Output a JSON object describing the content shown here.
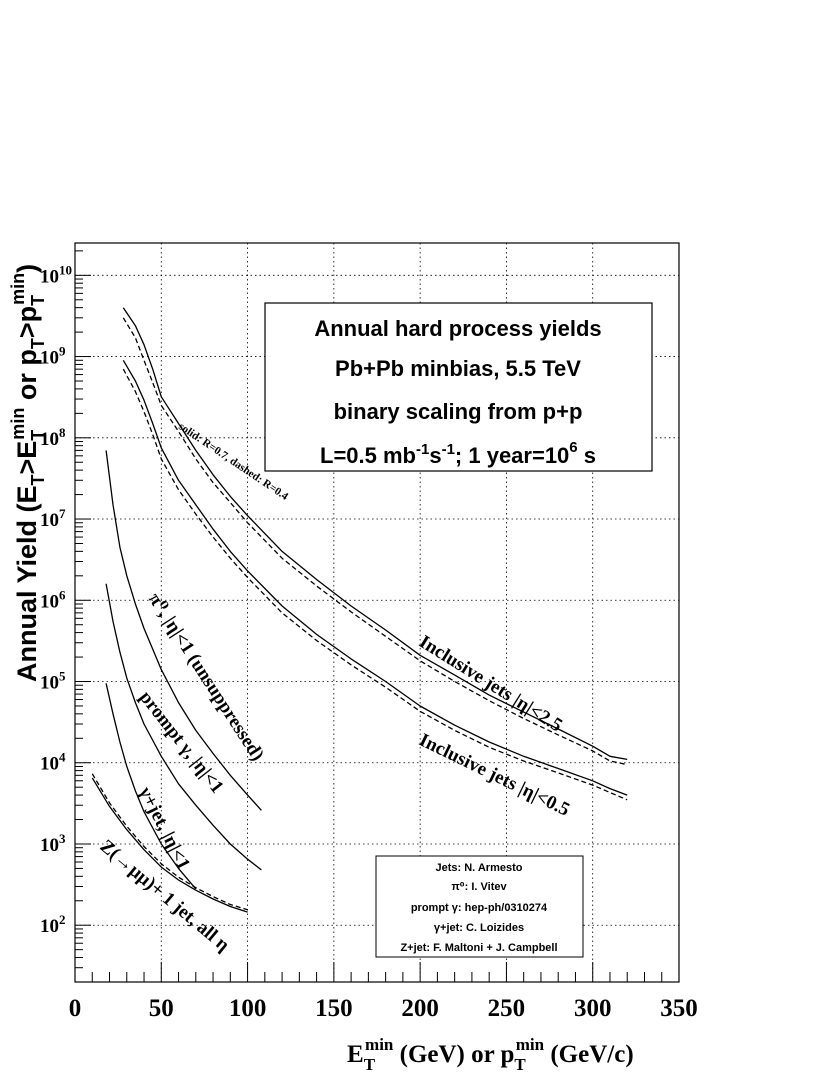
{
  "chart_data": {
    "type": "line",
    "xlim": [
      0,
      350
    ],
    "ylim": [
      20,
      25000000000.0
    ],
    "yscale": "log",
    "grid": true,
    "x_ticks": [
      0,
      50,
      100,
      150,
      200,
      250,
      300,
      350
    ],
    "y_ticks": [
      {
        "value": 100,
        "base": "10",
        "exp": "2"
      },
      {
        "value": 1000,
        "base": "10",
        "exp": "3"
      },
      {
        "value": 10000,
        "base": "10",
        "exp": "4"
      },
      {
        "value": 100000,
        "base": "10",
        "exp": "5"
      },
      {
        "value": 1000000,
        "base": "10",
        "exp": "6"
      },
      {
        "value": 10000000,
        "base": "10",
        "exp": "7"
      },
      {
        "value": 100000000,
        "base": "10",
        "exp": "8"
      },
      {
        "value": 1000000000,
        "base": "10",
        "exp": "9"
      },
      {
        "value": 10000000000,
        "base": "10",
        "exp": "10"
      }
    ],
    "xlabel": {
      "e": "E",
      "e_sub": "T",
      "e_sup": "min",
      "unit1": " (GeV)  or p",
      "p_sub": "T",
      "p_sup": "min",
      "unit2": " (GeV/c)"
    },
    "ylabel": {
      "main": "Annual Yield (E",
      "s1": "T",
      "gt": ">E",
      "s2": "T",
      "s2sup": "min",
      "or": " or p",
      "s3": "T",
      "gt2": ">p",
      "s4": "T",
      "s4sup": "min",
      "close": ")"
    },
    "title_box": {
      "line1": "Annual hard process yields",
      "line2": "Pb+Pb minbias, 5.5 TeV",
      "line3": "binary scaling from p+p",
      "line4_a": "L=0.5 mb",
      "line4_b": "-1",
      "line4_c": "s",
      "line4_d": "-1",
      "line4_e": "; 1 year=10",
      "line4_f": "6",
      "line4_g": " s"
    },
    "credits": [
      "Jets: N. Armesto",
      "π⁰: I. Vitev",
      "prompt γ: hep-ph/0310274",
      "γ+jet: C. Loizides",
      "Z+jet: F. Maltoni + J. Campbell"
    ],
    "annotations": {
      "solid_dashed": "solid: R=0.7, dashed: R=0.4",
      "incl_25": "Inclusive jets |η|<2.5",
      "incl_05": "Inclusive jets |η|<0.5",
      "pi0": "π⁰, |η|<1 (unsuppressed)",
      "prompt": "prompt γ, |η|<1",
      "gjet": "γ+jet, |η|<1",
      "zjet": "Z(→μμ)+ 1 jet, all η"
    },
    "series": [
      {
        "name": "Inclusive jets |η|<2.5",
        "style": "solid",
        "x": [
          28,
          35,
          40,
          45,
          50,
          60,
          70,
          80,
          90,
          100,
          120,
          140,
          160,
          180,
          200,
          220,
          240,
          260,
          280,
          300,
          310,
          320
        ],
        "y": [
          4000000000.0,
          2400000000.0,
          1400000000.0,
          700000000.0,
          320000000.0,
          150000000.0,
          70000000.0,
          35000000.0,
          19000000.0,
          11000000.0,
          4000000.0,
          1800000.0,
          850000.0,
          430000.0,
          210000.0,
          120000.0,
          68000.0,
          42000.0,
          26000.0,
          16000.0,
          12000.0,
          11000.0
        ]
      },
      {
        "name": "Inclusive jets |η|<2.5",
        "style": "dashed",
        "x": [
          28,
          35,
          40,
          45,
          50,
          60,
          70,
          80,
          90,
          100,
          120,
          140,
          160,
          180,
          200,
          220,
          240,
          260,
          280,
          300,
          310,
          320
        ],
        "y": [
          3000000000.0,
          1700000000.0,
          900000000.0,
          480000000.0,
          250000000.0,
          120000000.0,
          55000000.0,
          28000000.0,
          16000000.0,
          9000000.0,
          3300000.0,
          1500000.0,
          720000.0,
          360000.0,
          180000.0,
          100000.0,
          58000.0,
          35000.0,
          22000.0,
          14000.0,
          10500.0,
          9500.0
        ]
      },
      {
        "name": "Inclusive jets |η|<0.5",
        "style": "solid",
        "x": [
          28,
          35,
          40,
          45,
          50,
          60,
          70,
          80,
          90,
          100,
          120,
          140,
          160,
          180,
          200,
          220,
          240,
          260,
          280,
          300,
          310,
          320
        ],
        "y": [
          900000000.0,
          500000000.0,
          290000000.0,
          150000000.0,
          75000000.0,
          30000000.0,
          15000000.0,
          7500000.0,
          4000000.0,
          2300000.0,
          850000.0,
          380000.0,
          190000.0,
          100000.0,
          50000.0,
          29000.0,
          18000.0,
          12000.0,
          8500.0,
          6000.0,
          4800.0,
          4000.0
        ]
      },
      {
        "name": "Inclusive jets |η|<0.5",
        "style": "dashed",
        "x": [
          28,
          35,
          40,
          45,
          50,
          60,
          70,
          80,
          90,
          100,
          120,
          140,
          160,
          180,
          200,
          220,
          240,
          260,
          280,
          300,
          310,
          320
        ],
        "y": [
          700000000.0,
          370000000.0,
          210000000.0,
          110000000.0,
          55000000.0,
          23000000.0,
          11500000.0,
          6000000.0,
          3300000.0,
          1900000.0,
          700000.0,
          320000.0,
          160000.0,
          85000.0,
          43000.0,
          25000.0,
          15500.0,
          10500.0,
          7500.0,
          5300.0,
          4300.0,
          3500.0
        ]
      },
      {
        "name": "π⁰, |η|<1 (unsuppressed)",
        "style": "solid",
        "x": [
          18,
          22,
          26,
          30,
          35,
          40,
          50,
          60,
          70,
          80,
          90,
          100,
          108
        ],
        "y": [
          70000000.0,
          15000000.0,
          4500000.0,
          2000000.0,
          900000.0,
          450000.0,
          140000.0,
          55000.0,
          25000.0,
          13000.0,
          7000.0,
          4000.0,
          2600.0
        ]
      },
      {
        "name": "prompt γ, |η|<1",
        "style": "solid",
        "x": [
          18,
          22,
          26,
          30,
          35,
          40,
          50,
          60,
          70,
          80,
          90,
          100,
          108
        ],
        "y": [
          1600000.0,
          550000.0,
          230000.0,
          110000.0,
          55000.0,
          30000.0,
          12000.0,
          5500.0,
          3000.0,
          1700.0,
          1000.0,
          650.0,
          480.0
        ]
      },
      {
        "name": "γ+jet, |η|<1",
        "style": "solid",
        "x": [
          18,
          22,
          26,
          30,
          35,
          40,
          50,
          60,
          70
        ],
        "y": [
          95000.0,
          40000.0,
          18000.0,
          9000.0,
          4500.0,
          2500.0,
          1000.0,
          500.0,
          280.0
        ]
      },
      {
        "name": "Z(→μμ)+ 1 jet, all η",
        "style": "solid",
        "x": [
          10,
          20,
          30,
          40,
          50,
          60,
          70,
          80,
          90,
          100
        ],
        "y": [
          6500.0,
          2900.0,
          1500.0,
          850.0,
          520.0,
          360.0,
          270.0,
          210.0,
          170.0,
          145.0
        ]
      },
      {
        "name": "Z(→μμ)+ 1 jet, all η",
        "style": "dashed",
        "x": [
          10,
          20,
          30,
          40,
          50,
          60,
          70,
          80,
          90,
          100
        ],
        "y": [
          7300.0,
          3200.0,
          1650.0,
          930.0,
          570.0,
          390.0,
          290.0,
          225.0,
          180.0,
          155.0
        ]
      }
    ]
  }
}
